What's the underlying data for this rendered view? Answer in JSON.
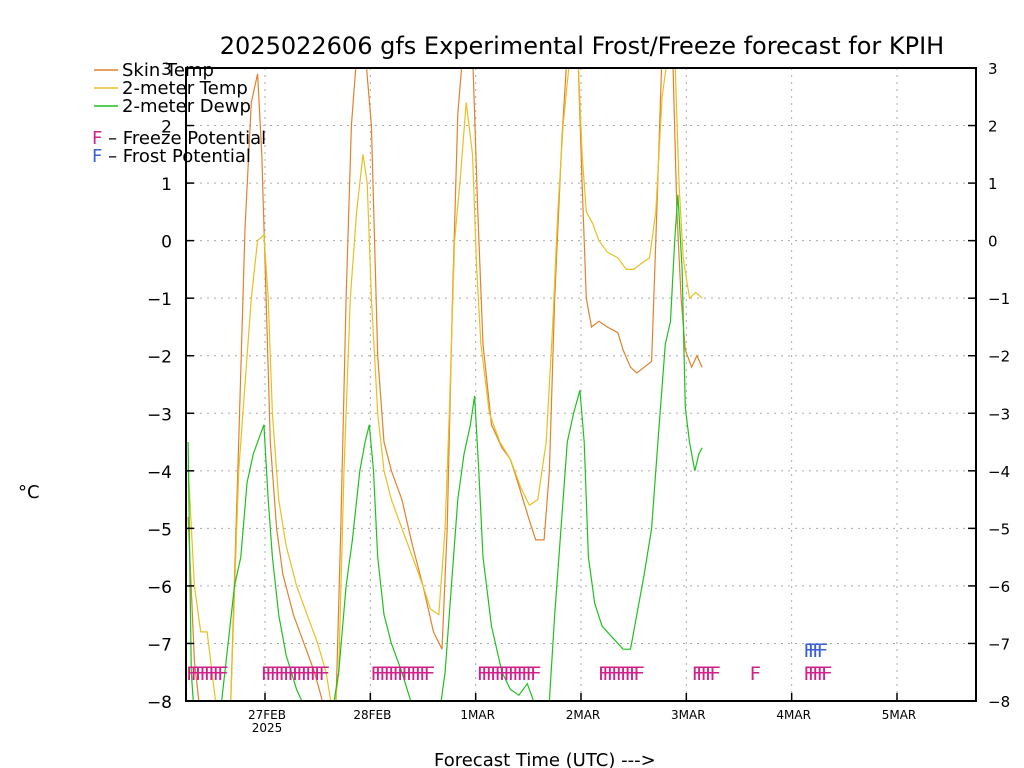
{
  "chart_data": {
    "type": "line",
    "title": "2025022606 gfs Experimental Frost/Freeze forecast for KPIH",
    "xlabel": "Forecast Time (UTC) --->",
    "ylabel": "°C",
    "ylim": [
      -8,
      3
    ],
    "yticks": [
      -8,
      -7,
      -6,
      -5,
      -4,
      -3,
      -2,
      -1,
      0,
      1,
      2,
      3
    ],
    "ytick_labels": [
      "−8",
      "−7",
      "−6",
      "−5",
      "−4",
      "−3",
      "−2",
      "−1",
      "0",
      "1",
      "2",
      "3"
    ],
    "xlim": [
      0,
      7.5
    ],
    "xticks": [
      {
        "x": 0.75,
        "label": "27FEB",
        "sub": "2025"
      },
      {
        "x": 1.75,
        "label": "28FEB",
        "sub": ""
      },
      {
        "x": 2.75,
        "label": "1MAR",
        "sub": ""
      },
      {
        "x": 3.75,
        "label": "2MAR",
        "sub": ""
      },
      {
        "x": 4.75,
        "label": "3MAR",
        "sub": ""
      },
      {
        "x": 5.75,
        "label": "4MAR",
        "sub": ""
      },
      {
        "x": 6.75,
        "label": "5MAR",
        "sub": ""
      }
    ],
    "grid": true,
    "legend": "top-left",
    "series": [
      {
        "name": "Skin Temp",
        "color": "#e0822e",
        "points": [
          [
            0.02,
            -4.8
          ],
          [
            0.08,
            -7.3
          ],
          [
            0.14,
            -8.3
          ],
          [
            0.42,
            -8.3
          ],
          [
            0.5,
            -3.5
          ],
          [
            0.56,
            0.2
          ],
          [
            0.62,
            2.4
          ],
          [
            0.68,
            2.9
          ],
          [
            0.72,
            1.5
          ],
          [
            0.76,
            -1.0
          ],
          [
            0.8,
            -3.5
          ],
          [
            0.86,
            -5.0
          ],
          [
            0.92,
            -5.8
          ],
          [
            1.02,
            -6.5
          ],
          [
            1.12,
            -7.0
          ],
          [
            1.22,
            -7.5
          ],
          [
            1.34,
            -8.3
          ],
          [
            1.42,
            -8.3
          ],
          [
            1.47,
            -5.0
          ],
          [
            1.52,
            -1.0
          ],
          [
            1.57,
            2.0
          ],
          [
            1.62,
            3.2
          ],
          [
            1.7,
            3.3
          ],
          [
            1.76,
            2.0
          ],
          [
            1.82,
            -2.0
          ],
          [
            1.88,
            -3.5
          ],
          [
            1.95,
            -4.0
          ],
          [
            2.05,
            -4.5
          ],
          [
            2.15,
            -5.3
          ],
          [
            2.25,
            -6.0
          ],
          [
            2.35,
            -6.8
          ],
          [
            2.43,
            -7.1
          ],
          [
            2.48,
            -5.0
          ],
          [
            2.53,
            -1.0
          ],
          [
            2.58,
            2.2
          ],
          [
            2.63,
            3.3
          ],
          [
            2.72,
            3.3
          ],
          [
            2.77,
            0.5
          ],
          [
            2.82,
            -1.8
          ],
          [
            2.9,
            -3.2
          ],
          [
            3.0,
            -3.6
          ],
          [
            3.08,
            -3.8
          ],
          [
            3.15,
            -4.2
          ],
          [
            3.25,
            -4.8
          ],
          [
            3.32,
            -5.2
          ],
          [
            3.4,
            -5.2
          ],
          [
            3.45,
            -4.0
          ],
          [
            3.5,
            -1.0
          ],
          [
            3.57,
            1.8
          ],
          [
            3.62,
            3.3
          ],
          [
            3.72,
            3.3
          ],
          [
            3.76,
            1.0
          ],
          [
            3.8,
            -1.0
          ],
          [
            3.85,
            -1.5
          ],
          [
            3.92,
            -1.4
          ],
          [
            4.0,
            -1.5
          ],
          [
            4.1,
            -1.6
          ],
          [
            4.15,
            -1.9
          ],
          [
            4.22,
            -2.2
          ],
          [
            4.28,
            -2.3
          ],
          [
            4.35,
            -2.2
          ],
          [
            4.42,
            -2.1
          ],
          [
            4.47,
            0.5
          ],
          [
            4.52,
            3.3
          ],
          [
            4.62,
            3.3
          ],
          [
            4.66,
            0.5
          ],
          [
            4.7,
            -1.0
          ],
          [
            4.74,
            -1.9
          ],
          [
            4.8,
            -2.2
          ],
          [
            4.85,
            -2.0
          ],
          [
            4.9,
            -2.2
          ]
        ]
      },
      {
        "name": "2-meter Temp",
        "color": "#e8c020",
        "points": [
          [
            0.02,
            -3.9
          ],
          [
            0.08,
            -6.0
          ],
          [
            0.14,
            -6.8
          ],
          [
            0.2,
            -6.8
          ],
          [
            0.3,
            -8.3
          ],
          [
            0.42,
            -8.3
          ],
          [
            0.5,
            -4.0
          ],
          [
            0.56,
            -2.5
          ],
          [
            0.62,
            -1.0
          ],
          [
            0.68,
            0.0
          ],
          [
            0.74,
            0.1
          ],
          [
            0.78,
            -1.0
          ],
          [
            0.82,
            -3.0
          ],
          [
            0.88,
            -4.5
          ],
          [
            0.95,
            -5.3
          ],
          [
            1.05,
            -6.0
          ],
          [
            1.15,
            -6.5
          ],
          [
            1.25,
            -7.0
          ],
          [
            1.33,
            -7.5
          ],
          [
            1.4,
            -8.3
          ],
          [
            1.45,
            -7.5
          ],
          [
            1.5,
            -4.0
          ],
          [
            1.56,
            -1.0
          ],
          [
            1.62,
            0.5
          ],
          [
            1.68,
            1.5
          ],
          [
            1.72,
            1.0
          ],
          [
            1.76,
            -1.0
          ],
          [
            1.82,
            -3.0
          ],
          [
            1.88,
            -4.0
          ],
          [
            1.95,
            -4.5
          ],
          [
            2.05,
            -5.0
          ],
          [
            2.15,
            -5.5
          ],
          [
            2.25,
            -6.0
          ],
          [
            2.32,
            -6.4
          ],
          [
            2.4,
            -6.5
          ],
          [
            2.46,
            -5.0
          ],
          [
            2.5,
            -3.0
          ],
          [
            2.55,
            0.0
          ],
          [
            2.6,
            1.0
          ],
          [
            2.66,
            2.4
          ],
          [
            2.72,
            1.5
          ],
          [
            2.76,
            -0.5
          ],
          [
            2.8,
            -1.8
          ],
          [
            2.88,
            -3.0
          ],
          [
            2.98,
            -3.5
          ],
          [
            3.08,
            -3.8
          ],
          [
            3.18,
            -4.3
          ],
          [
            3.26,
            -4.6
          ],
          [
            3.34,
            -4.5
          ],
          [
            3.42,
            -3.5
          ],
          [
            3.48,
            -1.5
          ],
          [
            3.53,
            0.5
          ],
          [
            3.58,
            2.0
          ],
          [
            3.65,
            3.3
          ],
          [
            3.72,
            3.3
          ],
          [
            3.76,
            1.5
          ],
          [
            3.8,
            0.5
          ],
          [
            3.86,
            0.3
          ],
          [
            3.92,
            0.0
          ],
          [
            4.0,
            -0.2
          ],
          [
            4.1,
            -0.3
          ],
          [
            4.18,
            -0.5
          ],
          [
            4.25,
            -0.5
          ],
          [
            4.32,
            -0.4
          ],
          [
            4.4,
            -0.3
          ],
          [
            4.46,
            0.5
          ],
          [
            4.52,
            2.5
          ],
          [
            4.58,
            3.3
          ],
          [
            4.64,
            3.3
          ],
          [
            4.68,
            1.0
          ],
          [
            4.72,
            -0.3
          ],
          [
            4.78,
            -1.0
          ],
          [
            4.84,
            -0.9
          ],
          [
            4.9,
            -1.0
          ]
        ]
      },
      {
        "name": "2-meter Dewp",
        "color": "#20c020",
        "points": [
          [
            0.02,
            -3.5
          ],
          [
            0.05,
            -7.5
          ],
          [
            0.08,
            -8.3
          ],
          [
            0.32,
            -8.3
          ],
          [
            0.4,
            -7.0
          ],
          [
            0.46,
            -6.0
          ],
          [
            0.52,
            -5.5
          ],
          [
            0.58,
            -4.2
          ],
          [
            0.64,
            -3.7
          ],
          [
            0.7,
            -3.4
          ],
          [
            0.74,
            -3.2
          ],
          [
            0.78,
            -4.5
          ],
          [
            0.82,
            -5.5
          ],
          [
            0.88,
            -6.5
          ],
          [
            0.95,
            -7.2
          ],
          [
            1.05,
            -7.8
          ],
          [
            1.15,
            -8.2
          ],
          [
            1.25,
            -8.3
          ],
          [
            1.38,
            -8.3
          ],
          [
            1.45,
            -7.5
          ],
          [
            1.52,
            -6.0
          ],
          [
            1.58,
            -5.2
          ],
          [
            1.65,
            -4.0
          ],
          [
            1.7,
            -3.5
          ],
          [
            1.74,
            -3.2
          ],
          [
            1.78,
            -4.0
          ],
          [
            1.82,
            -5.5
          ],
          [
            1.88,
            -6.5
          ],
          [
            1.95,
            -7.0
          ],
          [
            2.05,
            -7.5
          ],
          [
            2.15,
            -8.1
          ],
          [
            2.25,
            -8.3
          ],
          [
            2.4,
            -8.3
          ],
          [
            2.46,
            -7.5
          ],
          [
            2.52,
            -6.0
          ],
          [
            2.58,
            -4.5
          ],
          [
            2.64,
            -3.7
          ],
          [
            2.7,
            -3.2
          ],
          [
            2.74,
            -2.7
          ],
          [
            2.78,
            -4.0
          ],
          [
            2.82,
            -5.5
          ],
          [
            2.9,
            -6.7
          ],
          [
            3.0,
            -7.5
          ],
          [
            3.08,
            -7.8
          ],
          [
            3.16,
            -7.9
          ],
          [
            3.24,
            -7.7
          ],
          [
            3.3,
            -8.0
          ],
          [
            3.36,
            -8.3
          ],
          [
            3.44,
            -8.3
          ],
          [
            3.5,
            -6.5
          ],
          [
            3.56,
            -5.0
          ],
          [
            3.62,
            -3.5
          ],
          [
            3.68,
            -3.0
          ],
          [
            3.74,
            -2.6
          ],
          [
            3.78,
            -3.5
          ],
          [
            3.82,
            -5.5
          ],
          [
            3.88,
            -6.3
          ],
          [
            3.95,
            -6.7
          ],
          [
            4.05,
            -6.9
          ],
          [
            4.15,
            -7.1
          ],
          [
            4.22,
            -7.1
          ],
          [
            4.28,
            -6.5
          ],
          [
            4.35,
            -5.8
          ],
          [
            4.42,
            -5.0
          ],
          [
            4.48,
            -3.5
          ],
          [
            4.55,
            -1.8
          ],
          [
            4.6,
            -1.4
          ],
          [
            4.64,
            0.0
          ],
          [
            4.67,
            0.8
          ],
          [
            4.71,
            -0.5
          ],
          [
            4.74,
            -2.9
          ],
          [
            4.78,
            -3.5
          ],
          [
            4.83,
            -4.0
          ],
          [
            4.87,
            -3.7
          ],
          [
            4.9,
            -3.6
          ]
        ]
      }
    ],
    "legend_entries": [
      {
        "text": "Skin Temp",
        "color": "#e0822e"
      },
      {
        "text": "2-meter Temp",
        "color": "#e8c020"
      },
      {
        "text": "2-meter Dewp",
        "color": "#20c020"
      }
    ],
    "potential_legend": [
      {
        "marker": "F",
        "text": " – Freeze Potential",
        "color": "#d0208a"
      },
      {
        "marker": "F",
        "text": " – Frost Potential",
        "color": "#3b5fd6"
      }
    ],
    "freeze_markers": {
      "color": "#d0208a",
      "y": -7.5,
      "text_spacing": 0.0,
      "runs": [
        {
          "x": 0.0,
          "text": "FFFFFFFF"
        },
        {
          "x": 0.71,
          "text": "FFFFFFFFFFFFFF"
        },
        {
          "x": 1.75,
          "text": "FFFFFFFFFFFFF"
        },
        {
          "x": 2.76,
          "text": "FFFFFFFFFFFFF"
        },
        {
          "x": 3.91,
          "text": "FFFFFFFFF"
        },
        {
          "x": 4.8,
          "text": "FFFFF"
        },
        {
          "x": 5.35,
          "text": "F"
        },
        {
          "x": 5.86,
          "text": "FFFFF"
        }
      ]
    },
    "frost_markers": {
      "color": "#3b5fd6",
      "y": -7.1,
      "runs": [
        {
          "x": 5.86,
          "text": "FFFF"
        }
      ]
    }
  }
}
